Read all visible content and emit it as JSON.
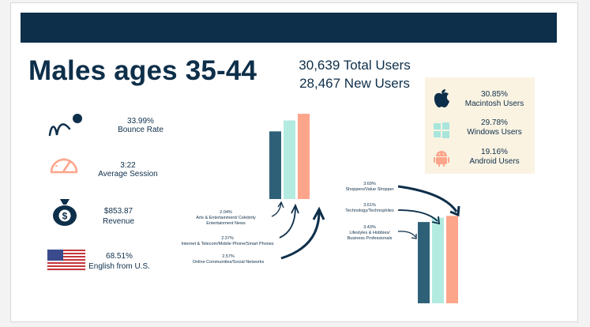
{
  "title": "Males ages 35-44",
  "totals": {
    "total_users": "30,639 Total Users",
    "new_users": "28,467 New Users"
  },
  "metrics": [
    {
      "icon": "bounce-icon",
      "value": "33.99%",
      "label": "Bounce Rate"
    },
    {
      "icon": "gauge-icon",
      "value": "3:22",
      "label": "Average Session"
    },
    {
      "icon": "money-bag-icon",
      "value": "$853.87",
      "label": "Revenue"
    },
    {
      "icon": "us-flag-icon",
      "value": "68.51%",
      "label": "English from U.S."
    }
  ],
  "os": [
    {
      "icon": "apple-icon",
      "value": "30.85%",
      "label": "Macintosh Users"
    },
    {
      "icon": "windows-icon",
      "value": "29.78%",
      "label": "Windows Users"
    },
    {
      "icon": "android-icon",
      "value": "19.16%",
      "label": "Android Users"
    }
  ],
  "affinity_left": [
    {
      "value": "2.04%",
      "name": "Arts & Entertainment/ Celebrity Entertainment News",
      "line1": "Arts & Entertainment/ Celebrity",
      "line2": "Entertainment News"
    },
    {
      "value": "2.37%",
      "name": "Internet & Telecom/Mobile Phone/Smart Phones",
      "line1": "Internet & Telecom/Mobile Phone/Smart Phones"
    },
    {
      "value": "2.57%",
      "name": "Online Communities/Social Networks",
      "line1": "Online Communities/Social Networks"
    }
  ],
  "affinity_right": [
    {
      "value": "3.69%",
      "name": "Shoppers/Value Shopper",
      "line1": "Shoppers/Value Shopper"
    },
    {
      "value": "3.61%",
      "name": "Technology/Technophiles",
      "line1": "Technology/Technophiles"
    },
    {
      "value": "3.43%",
      "name": "Lifestyles & Hobbies/ Business Professionals",
      "line1": "Lifestyles & Hobbies/",
      "line2": "Business Professionals"
    }
  ],
  "colors": {
    "navy": "#0e2f4a",
    "teal": "#2e6178",
    "mint": "#b3ebe1",
    "salmon": "#fca58b",
    "panel": "#fbf3e2"
  },
  "chart_data": [
    {
      "type": "bar",
      "categories": [
        "Arts & Entertainment/ Celebrity Entertainment News",
        "Internet & Telecom/Mobile Phone/Smart Phones",
        "Online Communities/Social Networks"
      ],
      "values": [
        2.04,
        2.37,
        2.57
      ]
    },
    {
      "type": "bar",
      "categories": [
        "Lifestyles & Hobbies/ Business Professionals",
        "Technology/Technophiles",
        "Shoppers/Value Shopper"
      ],
      "values": [
        3.43,
        3.61,
        3.69
      ]
    }
  ]
}
